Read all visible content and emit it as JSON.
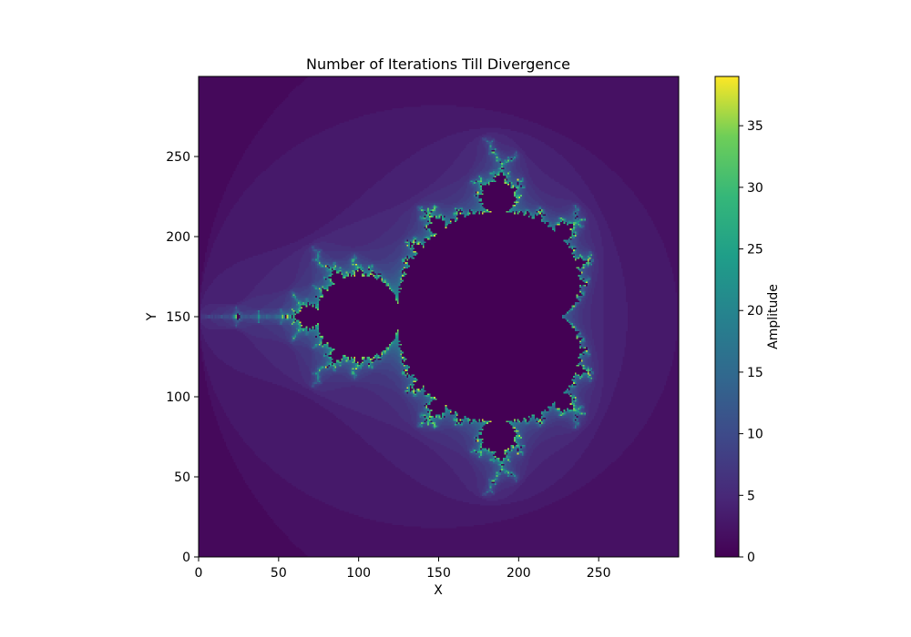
{
  "chart_data": {
    "type": "heatmap",
    "title": "Number of Iterations Till Divergence",
    "xlabel": "X",
    "ylabel": "Y",
    "colorbar_label": "Amplitude",
    "colormap": "viridis",
    "xlim": [
      0,
      300
    ],
    "ylim": [
      0,
      300
    ],
    "value_range": [
      0,
      39
    ],
    "x_ticks": [
      0,
      50,
      100,
      150,
      200,
      250
    ],
    "y_ticks": [
      0,
      50,
      100,
      150,
      200,
      250
    ],
    "colorbar_ticks": [
      0,
      5,
      10,
      15,
      20,
      25,
      30,
      35
    ],
    "grid": false,
    "legend": "none",
    "complex_plane": {
      "re_min": -2.0,
      "re_max": 1.0,
      "im_min": -1.5,
      "im_max": 1.5,
      "max_iter": 39
    }
  }
}
